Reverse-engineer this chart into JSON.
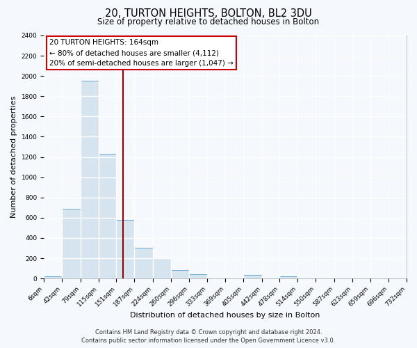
{
  "title": "20, TURTON HEIGHTS, BOLTON, BL2 3DU",
  "subtitle": "Size of property relative to detached houses in Bolton",
  "xlabel": "Distribution of detached houses by size in Bolton",
  "ylabel": "Number of detached properties",
  "bar_edges": [
    6,
    42,
    79,
    115,
    151,
    187,
    224,
    260,
    296,
    333,
    369,
    405,
    442,
    478,
    514,
    550,
    587,
    623,
    659,
    696,
    732
  ],
  "bar_heights": [
    20,
    690,
    1950,
    1230,
    575,
    300,
    200,
    80,
    45,
    0,
    0,
    35,
    0,
    20,
    0,
    0,
    0,
    0,
    0,
    0
  ],
  "bar_color": "#d6e4f0",
  "bar_edge_color": "#6aaed6",
  "vline_x": 164,
  "vline_color": "#990000",
  "annotation_title": "20 TURTON HEIGHTS: 164sqm",
  "annotation_line1": "← 80% of detached houses are smaller (4,112)",
  "annotation_line2": "20% of semi-detached houses are larger (1,047) →",
  "annotation_box_color": "#ffffff",
  "annotation_box_edge": "#cc0000",
  "ylim": [
    0,
    2400
  ],
  "yticks": [
    0,
    200,
    400,
    600,
    800,
    1000,
    1200,
    1400,
    1600,
    1800,
    2000,
    2200,
    2400
  ],
  "tick_labels": [
    "6sqm",
    "42sqm",
    "79sqm",
    "115sqm",
    "151sqm",
    "187sqm",
    "224sqm",
    "260sqm",
    "296sqm",
    "333sqm",
    "369sqm",
    "405sqm",
    "442sqm",
    "478sqm",
    "514sqm",
    "550sqm",
    "587sqm",
    "623sqm",
    "659sqm",
    "696sqm",
    "732sqm"
  ],
  "footer_line1": "Contains HM Land Registry data © Crown copyright and database right 2024.",
  "footer_line2": "Contains public sector information licensed under the Open Government Licence v3.0.",
  "background_color": "#f5f8fc",
  "plot_bg_color": "#f5f8fc",
  "grid_color": "#ffffff",
  "title_fontsize": 10.5,
  "subtitle_fontsize": 8.5,
  "axis_label_fontsize": 8,
  "tick_fontsize": 6.5,
  "footer_fontsize": 6,
  "annot_fontsize": 7.5
}
